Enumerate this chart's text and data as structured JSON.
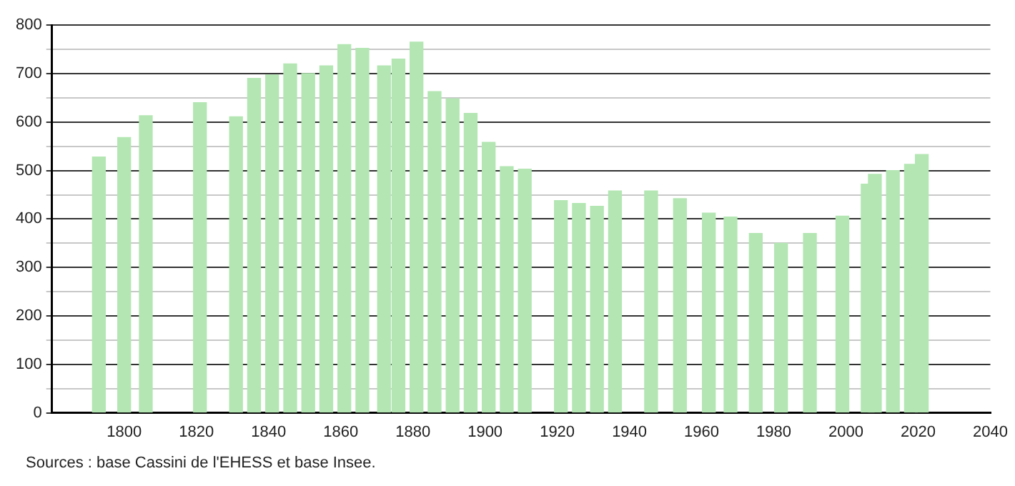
{
  "chart_data": {
    "type": "bar",
    "x": [
      1793,
      1800,
      1806,
      1821,
      1831,
      1836,
      1841,
      1846,
      1851,
      1856,
      1861,
      1866,
      1872,
      1876,
      1881,
      1886,
      1891,
      1896,
      1901,
      1906,
      1911,
      1921,
      1926,
      1931,
      1936,
      1946,
      1954,
      1962,
      1968,
      1975,
      1982,
      1990,
      1999,
      2006,
      2008,
      2013,
      2018,
      2021
    ],
    "values": [
      528,
      568,
      613,
      640,
      611,
      690,
      697,
      720,
      700,
      716,
      760,
      752,
      716,
      730,
      765,
      663,
      648,
      618,
      558,
      508,
      503,
      438,
      432,
      426,
      458,
      458,
      442,
      412,
      404,
      370,
      350,
      370,
      406,
      472,
      492,
      500,
      513,
      533
    ],
    "color": "#b3e6b3",
    "xlim": [
      1780,
      2040
    ],
    "xticks": [
      1800,
      1820,
      1840,
      1860,
      1880,
      1900,
      1920,
      1940,
      1960,
      1980,
      2000,
      2020,
      2040
    ],
    "ylim": [
      0,
      800
    ],
    "yticks": [
      0,
      {
        "value": 50,
        "label": null
      },
      100,
      {
        "value": 150,
        "label": null
      },
      200,
      {
        "value": 250,
        "label": null
      },
      300,
      {
        "value": 350,
        "label": null
      },
      400,
      {
        "value": 450,
        "label": null
      },
      500,
      {
        "value": 550,
        "label": null
      },
      600,
      {
        "value": 650,
        "label": null
      },
      700,
      {
        "value": 750,
        "label": null
      },
      800
    ],
    "grid": "y",
    "legend": false,
    "annotations": [
      "Sources : base Cassini de l'EHESS et base Insee."
    ]
  }
}
